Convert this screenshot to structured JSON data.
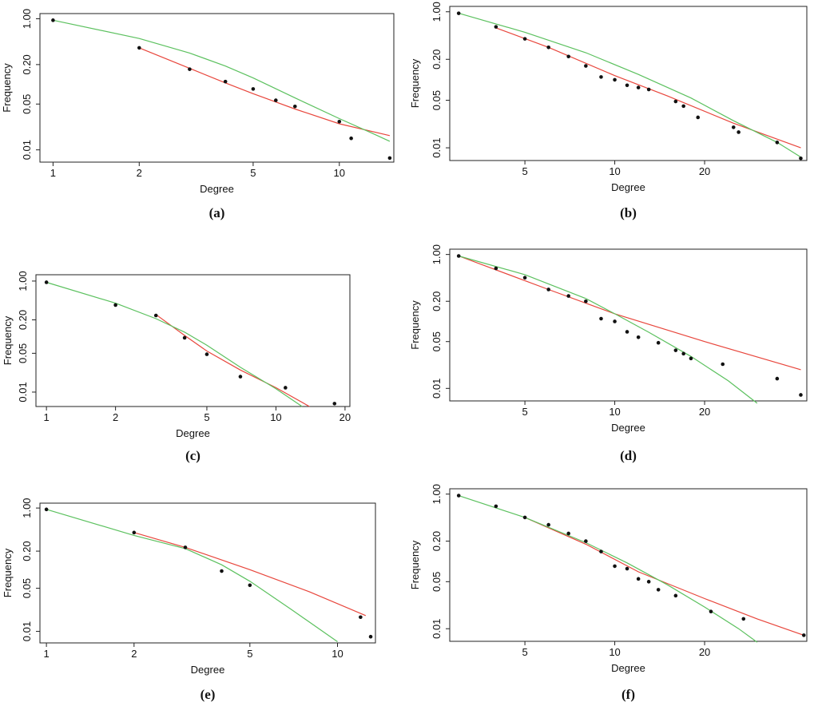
{
  "colors": {
    "red_fit": "#e8463c",
    "green_fit": "#5cc15f",
    "points": "#111111"
  },
  "chart_data": [
    {
      "type": "scatter",
      "caption": "(a)",
      "xlabel": "Degree",
      "ylabel": "Frequency",
      "x_scale": "log",
      "y_scale": "log",
      "xlim": [
        0.9,
        15.5
      ],
      "ylim": [
        0.0065,
        1.2
      ],
      "xticks": [
        1,
        2,
        5,
        10
      ],
      "xticklabels": [
        "1",
        "2",
        "5",
        "10"
      ],
      "yticks": [
        0.01,
        0.05,
        0.2,
        1.0
      ],
      "yticklabels": [
        "0.01",
        "0.05",
        "0.20",
        "1.00"
      ],
      "points": [
        [
          1,
          0.95
        ],
        [
          2,
          0.36
        ],
        [
          3,
          0.17
        ],
        [
          4,
          0.11
        ],
        [
          5,
          0.085
        ],
        [
          6,
          0.057
        ],
        [
          7,
          0.046
        ],
        [
          10,
          0.027
        ],
        [
          11,
          0.015
        ],
        [
          15,
          0.0075
        ]
      ],
      "series": [
        {
          "color": "red",
          "x": [
            2,
            3,
            4,
            5,
            7,
            10,
            15
          ],
          "y": [
            0.36,
            0.175,
            0.105,
            0.072,
            0.042,
            0.025,
            0.0165
          ]
        },
        {
          "color": "green",
          "x": [
            1,
            2,
            3,
            4,
            5,
            7,
            10,
            13,
            15
          ],
          "y": [
            0.95,
            0.5,
            0.3,
            0.19,
            0.125,
            0.062,
            0.03,
            0.018,
            0.0135
          ]
        }
      ]
    },
    {
      "type": "scatter",
      "caption": "(b)",
      "xlabel": "Degree",
      "ylabel": "Frequency",
      "x_scale": "log",
      "y_scale": "log",
      "xlim": [
        2.8,
        44
      ],
      "ylim": [
        0.0065,
        1.2
      ],
      "xticks": [
        5,
        10,
        20
      ],
      "xticklabels": [
        "5",
        "10",
        "20"
      ],
      "yticks": [
        0.01,
        0.05,
        0.2,
        1.0
      ],
      "yticklabels": [
        "0.01",
        "0.05",
        "0.20",
        "1.00"
      ],
      "points": [
        [
          3,
          0.95
        ],
        [
          4,
          0.6
        ],
        [
          5,
          0.4
        ],
        [
          6,
          0.3
        ],
        [
          7,
          0.22
        ],
        [
          8,
          0.16
        ],
        [
          9,
          0.11
        ],
        [
          10,
          0.1
        ],
        [
          11,
          0.083
        ],
        [
          12,
          0.077
        ],
        [
          13,
          0.072
        ],
        [
          16,
          0.048
        ],
        [
          17,
          0.041
        ],
        [
          19,
          0.028
        ],
        [
          25,
          0.02
        ],
        [
          26,
          0.017
        ],
        [
          35,
          0.012
        ],
        [
          42,
          0.007
        ]
      ],
      "series": [
        {
          "color": "red",
          "x": [
            4,
            6,
            10,
            15,
            25,
            42
          ],
          "y": [
            0.58,
            0.3,
            0.115,
            0.058,
            0.023,
            0.01
          ]
        },
        {
          "color": "green",
          "x": [
            3,
            5,
            8,
            12,
            18,
            25,
            35,
            42
          ],
          "y": [
            0.95,
            0.5,
            0.25,
            0.12,
            0.054,
            0.025,
            0.012,
            0.0073
          ]
        }
      ]
    },
    {
      "type": "scatter",
      "caption": "(c)",
      "xlabel": "Degree",
      "ylabel": "Frequency",
      "x_scale": "log",
      "y_scale": "log",
      "xlim": [
        0.9,
        21
      ],
      "ylim": [
        0.0055,
        1.3
      ],
      "xticks": [
        1,
        2,
        5,
        10,
        20
      ],
      "xticklabels": [
        "1",
        "2",
        "5",
        "10",
        "20"
      ],
      "yticks": [
        0.01,
        0.05,
        0.2,
        1.0
      ],
      "yticklabels": [
        "0.01",
        "0.05",
        "0.20",
        "1.00"
      ],
      "points": [
        [
          1,
          0.95
        ],
        [
          2,
          0.37
        ],
        [
          3,
          0.24
        ],
        [
          4,
          0.095
        ],
        [
          5,
          0.048
        ],
        [
          7,
          0.019
        ],
        [
          11,
          0.012
        ],
        [
          18,
          0.0062
        ]
      ],
      "series": [
        {
          "color": "red",
          "x": [
            3,
            4,
            5,
            7,
            10,
            14
          ],
          "y": [
            0.25,
            0.105,
            0.055,
            0.025,
            0.012,
            0.0055
          ]
        },
        {
          "color": "green",
          "x": [
            1,
            2,
            3,
            4,
            5,
            7,
            10,
            13
          ],
          "y": [
            0.95,
            0.4,
            0.21,
            0.12,
            0.07,
            0.028,
            0.0115,
            0.0055
          ]
        }
      ]
    },
    {
      "type": "scatter",
      "caption": "(d)",
      "xlabel": "Degree",
      "ylabel": "Frequency",
      "x_scale": "log",
      "y_scale": "log",
      "xlim": [
        2.8,
        44
      ],
      "ylim": [
        0.0065,
        1.2
      ],
      "xticks": [
        5,
        10,
        20
      ],
      "xticklabels": [
        "5",
        "10",
        "20"
      ],
      "yticks": [
        0.01,
        0.05,
        0.2,
        1.0
      ],
      "yticklabels": [
        "0.01",
        "0.05",
        "0.20",
        "1.00"
      ],
      "points": [
        [
          3,
          0.95
        ],
        [
          4,
          0.62
        ],
        [
          5,
          0.45
        ],
        [
          6,
          0.3
        ],
        [
          7,
          0.24
        ],
        [
          8,
          0.2
        ],
        [
          9,
          0.11
        ],
        [
          10,
          0.1
        ],
        [
          11,
          0.07
        ],
        [
          12,
          0.058
        ],
        [
          14,
          0.048
        ],
        [
          16,
          0.037
        ],
        [
          17,
          0.033
        ],
        [
          18,
          0.028
        ],
        [
          23,
          0.023
        ],
        [
          35,
          0.014
        ],
        [
          42,
          0.008
        ]
      ],
      "series": [
        {
          "color": "red",
          "x": [
            3,
            6,
            10,
            20,
            42
          ],
          "y": [
            0.95,
            0.3,
            0.13,
            0.05,
            0.019
          ]
        },
        {
          "color": "green",
          "x": [
            3,
            5,
            8,
            10,
            13,
            18,
            24,
            30
          ],
          "y": [
            0.95,
            0.5,
            0.22,
            0.13,
            0.069,
            0.03,
            0.013,
            0.006
          ]
        }
      ]
    },
    {
      "type": "scatter",
      "caption": "(e)",
      "xlabel": "Degree",
      "ylabel": "Frequency",
      "x_scale": "log",
      "y_scale": "log",
      "xlim": [
        0.95,
        13.5
      ],
      "ylim": [
        0.0065,
        1.2
      ],
      "xticks": [
        1,
        2,
        5,
        10
      ],
      "xticklabels": [
        "1",
        "2",
        "5",
        "10"
      ],
      "yticks": [
        0.01,
        0.05,
        0.2,
        1.0
      ],
      "yticklabels": [
        "0.01",
        "0.05",
        "0.20",
        "1.00"
      ],
      "points": [
        [
          1,
          0.95
        ],
        [
          2,
          0.4
        ],
        [
          3,
          0.23
        ],
        [
          4,
          0.095
        ],
        [
          5,
          0.056
        ],
        [
          12,
          0.017
        ],
        [
          13,
          0.0082
        ]
      ],
      "series": [
        {
          "color": "red",
          "x": [
            2,
            3,
            5,
            8,
            12.5
          ],
          "y": [
            0.4,
            0.23,
            0.1,
            0.044,
            0.018
          ]
        },
        {
          "color": "green",
          "x": [
            1,
            2,
            3,
            4,
            5,
            7,
            10
          ],
          "y": [
            0.95,
            0.36,
            0.22,
            0.12,
            0.065,
            0.022,
            0.0068
          ]
        }
      ]
    },
    {
      "type": "scatter",
      "caption": "(f)",
      "xlabel": "Degree",
      "ylabel": "Frequency",
      "x_scale": "log",
      "y_scale": "log",
      "xlim": [
        2.8,
        44
      ],
      "ylim": [
        0.0065,
        1.2
      ],
      "xticks": [
        5,
        10,
        20
      ],
      "xticklabels": [
        "5",
        "10",
        "20"
      ],
      "yticks": [
        0.01,
        0.05,
        0.2,
        1.0
      ],
      "yticklabels": [
        "0.01",
        "0.05",
        "0.20",
        "1.00"
      ],
      "points": [
        [
          3,
          0.95
        ],
        [
          4,
          0.66
        ],
        [
          5,
          0.45
        ],
        [
          6,
          0.35
        ],
        [
          7,
          0.26
        ],
        [
          8,
          0.2
        ],
        [
          9,
          0.14
        ],
        [
          10,
          0.085
        ],
        [
          11,
          0.078
        ],
        [
          12,
          0.055
        ],
        [
          13,
          0.05
        ],
        [
          14,
          0.038
        ],
        [
          16,
          0.031
        ],
        [
          21,
          0.018
        ],
        [
          27,
          0.014
        ],
        [
          43,
          0.008
        ]
      ],
      "series": [
        {
          "color": "red",
          "x": [
            5,
            8,
            12,
            20,
            30,
            43
          ],
          "y": [
            0.45,
            0.18,
            0.07,
            0.028,
            0.014,
            0.008
          ]
        },
        {
          "color": "green",
          "x": [
            3,
            5,
            8,
            11,
            15,
            20,
            26,
            30
          ],
          "y": [
            0.95,
            0.45,
            0.19,
            0.095,
            0.045,
            0.021,
            0.01,
            0.0063
          ]
        }
      ]
    }
  ]
}
